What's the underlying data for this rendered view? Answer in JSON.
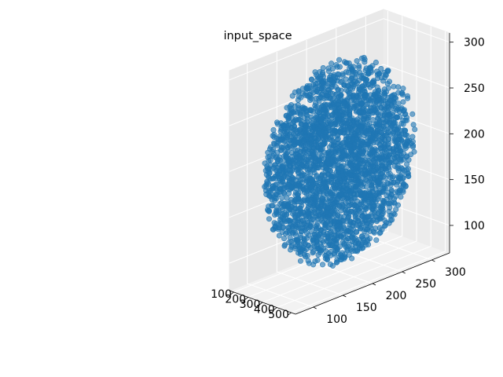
{
  "chart_data": {
    "type": "scatter",
    "projection": "3d",
    "title": "input_space",
    "xlabel": "",
    "ylabel": "",
    "zlabel": "",
    "xlim": [
      70,
      530
    ],
    "ylim": [
      70,
      330
    ],
    "zlim": [
      70,
      310
    ],
    "x_ticks": [
      100,
      200,
      300,
      400,
      500
    ],
    "y_ticks": [
      100,
      150,
      200,
      250,
      300
    ],
    "z_ticks": [
      100,
      150,
      200,
      250,
      300
    ],
    "grid": true,
    "point_color": "#1f77b4",
    "point_alpha": 0.6,
    "distribution": {
      "shape": "sphere",
      "center": [
        300,
        200,
        190
      ],
      "radius": [
        200,
        120,
        110
      ],
      "approx_count": 3000
    }
  }
}
